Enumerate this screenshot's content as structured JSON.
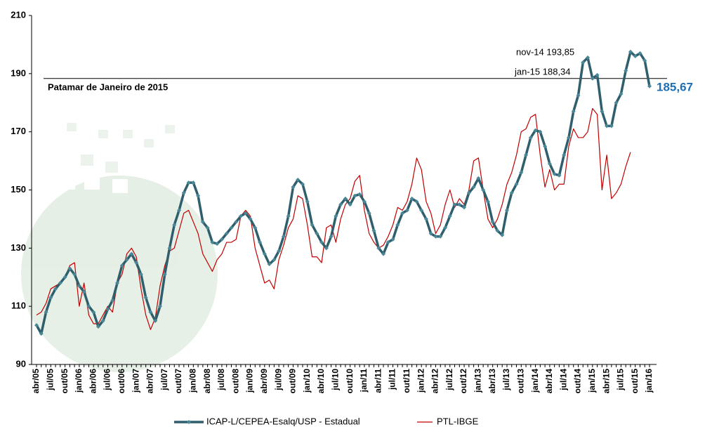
{
  "chart_data": {
    "type": "line",
    "categories": [
      "abr/05",
      null,
      null,
      "jul/05",
      null,
      null,
      "out/05",
      null,
      null,
      "jan/06",
      null,
      null,
      "abr/06",
      null,
      null,
      "jul/06",
      null,
      null,
      "out/06",
      null,
      null,
      "jan/07",
      null,
      null,
      "abr/07",
      null,
      null,
      "jul/07",
      null,
      null,
      "out/07",
      null,
      null,
      "jan/08",
      null,
      null,
      "abr/08",
      null,
      null,
      "jul/08",
      null,
      null,
      "out/08",
      null,
      null,
      "jan/09",
      null,
      null,
      "abr/09",
      null,
      null,
      "jul/09",
      null,
      null,
      "out/09",
      null,
      null,
      "jan/10",
      null,
      null,
      "abr/10",
      null,
      null,
      "jul/10",
      null,
      null,
      "out/10",
      null,
      null,
      "jan/11",
      null,
      null,
      "abr/11",
      null,
      null,
      "jul/11",
      null,
      null,
      "out/11",
      null,
      null,
      "jan/12",
      null,
      null,
      "abr/12",
      null,
      null,
      "jul/12",
      null,
      null,
      "out/12",
      null,
      null,
      "jan/13",
      null,
      null,
      "abr/13",
      null,
      null,
      "jul/13",
      null,
      null,
      "out/13",
      null,
      null,
      "jan/14",
      null,
      null,
      "abr/14",
      null,
      null,
      "jul/14",
      null,
      null,
      "out/14",
      null,
      null,
      "jan/15",
      null,
      null,
      "abr/15",
      null,
      null,
      "jul/15",
      null,
      null,
      "out/15",
      null,
      null,
      "jan/16"
    ],
    "series": [
      {
        "name": "ICAP-L/CEPEA-Esalq/USP - Estadual",
        "color": "#2f5e6c",
        "values": [
          103.5,
          100.6,
          108,
          113,
          116,
          118,
          120,
          123,
          121,
          117,
          115,
          110,
          108,
          103,
          105,
          109,
          112,
          118,
          124,
          126,
          128,
          125,
          121,
          113,
          108,
          105,
          110,
          121,
          130,
          138,
          143,
          149,
          152.5,
          152.5,
          148,
          139,
          137,
          132,
          131.5,
          133,
          135,
          137,
          139,
          141,
          142,
          140,
          137,
          132,
          128,
          124.5,
          126,
          129,
          134,
          141,
          151,
          153.5,
          152,
          146,
          138,
          135,
          132,
          130,
          134,
          141,
          145,
          147,
          145,
          148,
          148.5,
          146,
          142,
          136,
          130,
          128,
          132,
          133,
          138,
          142,
          143,
          147,
          146,
          143,
          140,
          135,
          134,
          134,
          137,
          141,
          145,
          145,
          144,
          149,
          151,
          154,
          150,
          146,
          139,
          136,
          134.5,
          143,
          149,
          152,
          156,
          162,
          168,
          170.5,
          170,
          165,
          159,
          155.5,
          155,
          162,
          168,
          177,
          182.5,
          193.85,
          195.5,
          188.34,
          189.5,
          177,
          172,
          172,
          180,
          183,
          191,
          197.5,
          196,
          197,
          194.5,
          185.67
        ],
        "value_labels": [
          null,
          null,
          null,
          null,
          null,
          null,
          null,
          null,
          null,
          null,
          null,
          null,
          null,
          null,
          null,
          null,
          null,
          null,
          null,
          null,
          null,
          null,
          null,
          null,
          null,
          null,
          null,
          null,
          null,
          null,
          null,
          null,
          null,
          null,
          null,
          null,
          null,
          null,
          null,
          null,
          null,
          null,
          null,
          null,
          null,
          null,
          null,
          null,
          null,
          null,
          null,
          null,
          null,
          null,
          null,
          null,
          null,
          null,
          null,
          null,
          null,
          null,
          null,
          null,
          null,
          null,
          null,
          null,
          null,
          null,
          null,
          null,
          null,
          null,
          null,
          null,
          null,
          null,
          null,
          null,
          null,
          null,
          null,
          null,
          null,
          null,
          null,
          null,
          null,
          null,
          null,
          null,
          null,
          null,
          null,
          null,
          null,
          null,
          null,
          null,
          null,
          null,
          null,
          null,
          null,
          null,
          null,
          null,
          null,
          null,
          null,
          null,
          null,
          null,
          null,
          null,
          null,
          null,
          null,
          null,
          null,
          null,
          null,
          null,
          null,
          null,
          null,
          null,
          null,
          "185,67"
        ]
      },
      {
        "name": "PTL-IBGE",
        "color": "#c00000",
        "values": [
          107,
          108,
          111,
          116,
          117,
          118,
          120,
          124,
          125,
          110,
          118,
          107,
          104,
          104,
          107,
          110,
          108,
          118,
          121,
          128,
          130,
          127,
          116,
          107,
          102,
          106,
          117,
          124,
          129,
          130,
          136,
          142,
          143,
          139,
          135,
          128,
          125,
          122,
          126,
          128,
          132,
          132,
          133,
          141,
          143,
          141,
          130,
          124,
          118,
          119,
          116,
          126,
          131,
          137,
          140,
          148,
          147,
          138,
          127,
          127,
          125,
          137,
          138,
          132,
          140,
          145,
          147,
          153,
          155,
          143,
          135,
          132,
          130,
          131,
          134,
          138,
          144,
          143,
          146,
          152,
          161,
          157,
          146,
          142,
          135,
          138,
          145,
          150,
          144,
          147,
          145,
          150,
          160,
          161,
          150,
          140,
          137,
          140,
          145,
          152,
          156,
          162,
          170,
          171,
          175,
          176,
          162,
          151,
          157,
          150,
          152,
          152,
          165,
          171,
          168,
          168,
          170,
          178,
          176,
          150,
          162,
          147,
          149,
          152,
          158,
          163,
          null,
          null,
          null,
          null
        ]
      }
    ],
    "annotations": [
      "nov-14 193,85",
      "jan-15 188,34",
      "Patamar de Janeiro de 2015"
    ],
    "ylim": [
      90,
      210
    ],
    "yticks": [
      90,
      110,
      130,
      150,
      170,
      190,
      210
    ],
    "legend": "bottom"
  }
}
